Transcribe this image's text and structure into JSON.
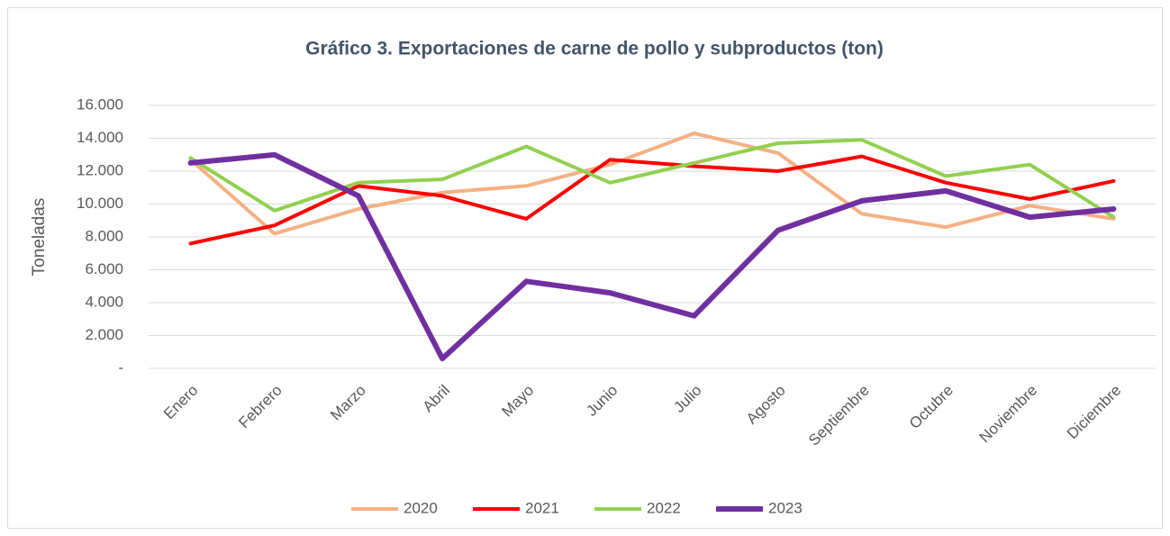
{
  "chart_data": {
    "type": "line",
    "title": "Gráfico 3. Exportaciones de carne de pollo y subproductos (ton)",
    "y_label": "Toneladas",
    "categories": [
      "Enero",
      "Febrero",
      "Marzo",
      "Abril",
      "Mayo",
      "Junio",
      "Julio",
      "Agosto",
      "Septiembre",
      "Octubre",
      "Noviembre",
      "Diciembre"
    ],
    "series": [
      {
        "name": "2020",
        "color": "#f4b183",
        "values": [
          12700,
          8200,
          9700,
          10700,
          11100,
          12400,
          14300,
          13100,
          9400,
          8600,
          9900,
          9100
        ]
      },
      {
        "name": "2021",
        "color": "#ff0000",
        "values": [
          7600,
          8700,
          11100,
          10500,
          9100,
          12700,
          12300,
          12000,
          12900,
          11300,
          10300,
          11400
        ]
      },
      {
        "name": "2022",
        "color": "#92d050",
        "values": [
          12800,
          9600,
          11300,
          11500,
          13500,
          11300,
          12500,
          13700,
          13900,
          11700,
          12400,
          9200
        ]
      },
      {
        "name": "2023",
        "color": "#7030a0",
        "values": [
          12500,
          13000,
          10500,
          600,
          5300,
          4600,
          3200,
          8400,
          10200,
          10800,
          9200,
          9700
        ]
      }
    ],
    "ylim": [
      0,
      16000
    ],
    "yticks": [
      {
        "value": 0,
        "label": "-"
      },
      {
        "value": 2000,
        "label": "2.000"
      },
      {
        "value": 4000,
        "label": "4.000"
      },
      {
        "value": 6000,
        "label": "6.000"
      },
      {
        "value": 8000,
        "label": "8.000"
      },
      {
        "value": 10000,
        "label": "10.000"
      },
      {
        "value": 12000,
        "label": "12.000"
      },
      {
        "value": 14000,
        "label": "14.000"
      },
      {
        "value": 16000,
        "label": "16.000"
      }
    ],
    "grid": true,
    "legend": "bottom"
  }
}
